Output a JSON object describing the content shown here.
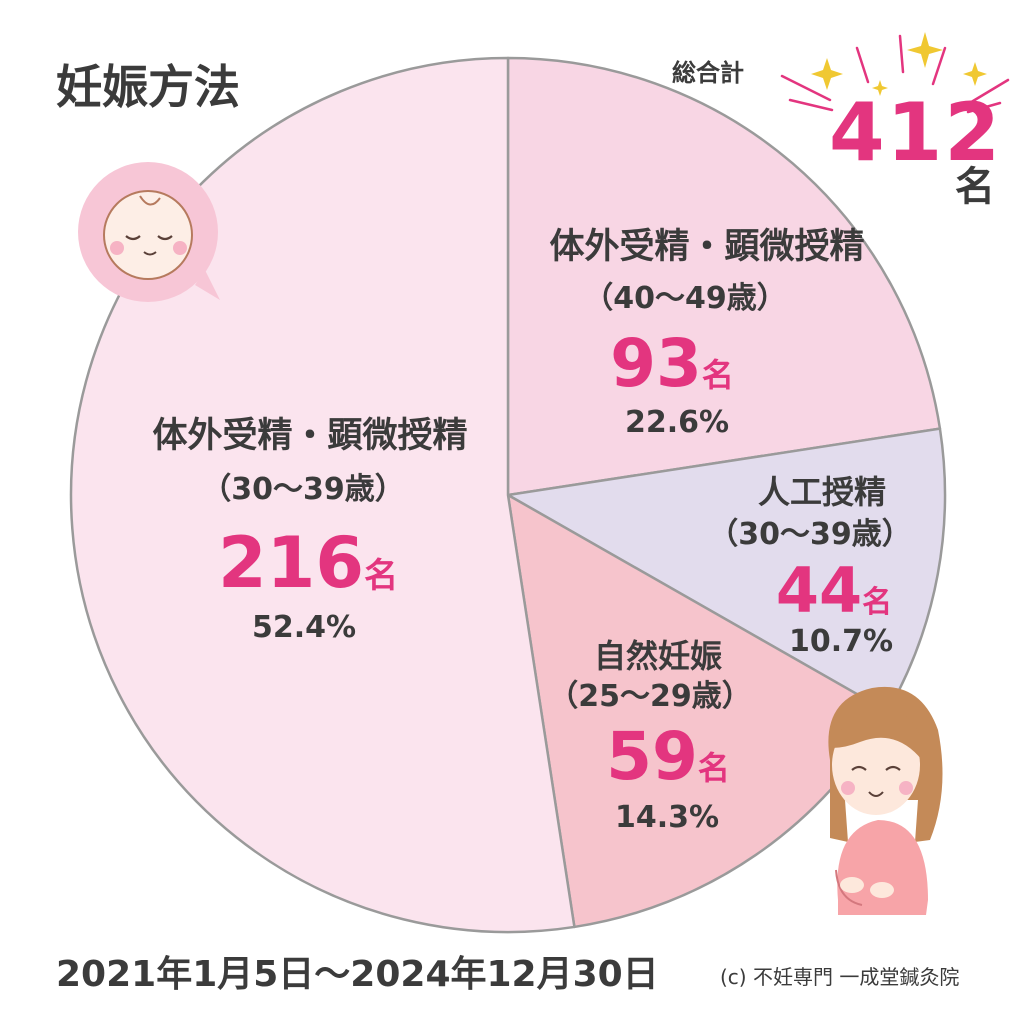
{
  "chart_data": {
    "type": "pie",
    "title": "妊娠方法",
    "total_label": "総合計",
    "total_value": "412",
    "total_unit": "名",
    "count_unit": "名",
    "date_range": "2021年1月5日〜2024年12月30日",
    "credit": "(c) 不妊専門 一成堂鍼灸院",
    "slices": [
      {
        "method": "体外受精・顕微授精",
        "age": "（40〜49歳）",
        "count": 93,
        "count_text": "93",
        "percent": 22.6,
        "percent_text": "22.6%",
        "color": "#f8d6e4"
      },
      {
        "method": "人工授精",
        "age": "（30〜39歳）",
        "count": 44,
        "count_text": "44",
        "percent": 10.7,
        "percent_text": "10.7%",
        "color": "#e2dced"
      },
      {
        "method": "自然妊娠",
        "age": "（25〜29歳）",
        "count": 59,
        "count_text": "59",
        "percent": 14.3,
        "percent_text": "14.3%",
        "color": "#f6c4cc"
      },
      {
        "method": "体外受精・顕微授精",
        "age": "（30〜39歳）",
        "count": 216,
        "count_text": "216",
        "percent": 52.4,
        "percent_text": "52.4%",
        "color": "#fbe4ee"
      }
    ],
    "colors": {
      "accent": "#e3357f",
      "text": "#3b3b3b",
      "outline": "#9a9a9a"
    }
  }
}
